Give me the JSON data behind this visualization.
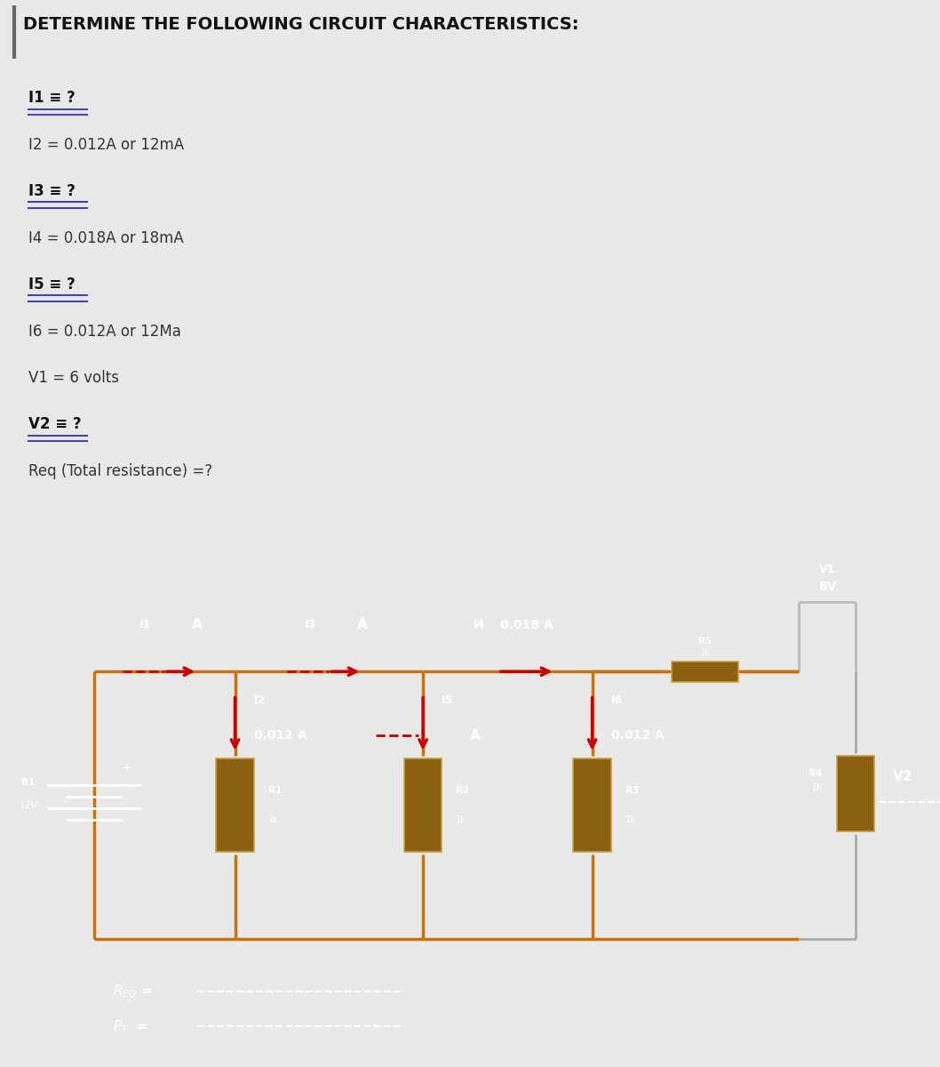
{
  "title": "DETERMINE THE FOLLOWING CIRCUIT CHARACTERISTICS:",
  "wire_color": "#c8720a",
  "wire_color_inner": "#c8720a",
  "text_white": "#ffffff",
  "text_dark": "#222222",
  "arrow_color": "#cc0000",
  "resistor_fill": "#8B6010",
  "resistor_edge": "#c8a040",
  "v1_bracket_color": "#bbbbbb",
  "r4_wire_color": "#aaaaaa",
  "top_bg": "#e8e8e8",
  "circuit_bg": "#000000",
  "circuit_border": "#444444",
  "underline_color": "#4444aa",
  "text_lines": [
    {
      "label": "I1",
      "suffix": " ≡ ?",
      "underline": true
    },
    {
      "label": "I2 = 0.012A or 12mA",
      "suffix": "",
      "underline": false
    },
    {
      "label": "I3",
      "suffix": " ≡ ?",
      "underline": true
    },
    {
      "label": "I4 = 0.018A or 18mA",
      "suffix": "",
      "underline": false
    },
    {
      "label": "I5",
      "suffix": " ≡ ?",
      "underline": true
    },
    {
      "label": "I6 = 0.012A or 12Ma",
      "suffix": "",
      "underline": false
    },
    {
      "label": "V1 = 6 volts",
      "suffix": "",
      "underline": false
    },
    {
      "label": "V2",
      "suffix": " ≡ ?",
      "underline": true
    },
    {
      "label": "Req (Total resistance) =?",
      "suffix": "",
      "underline": false
    }
  ]
}
